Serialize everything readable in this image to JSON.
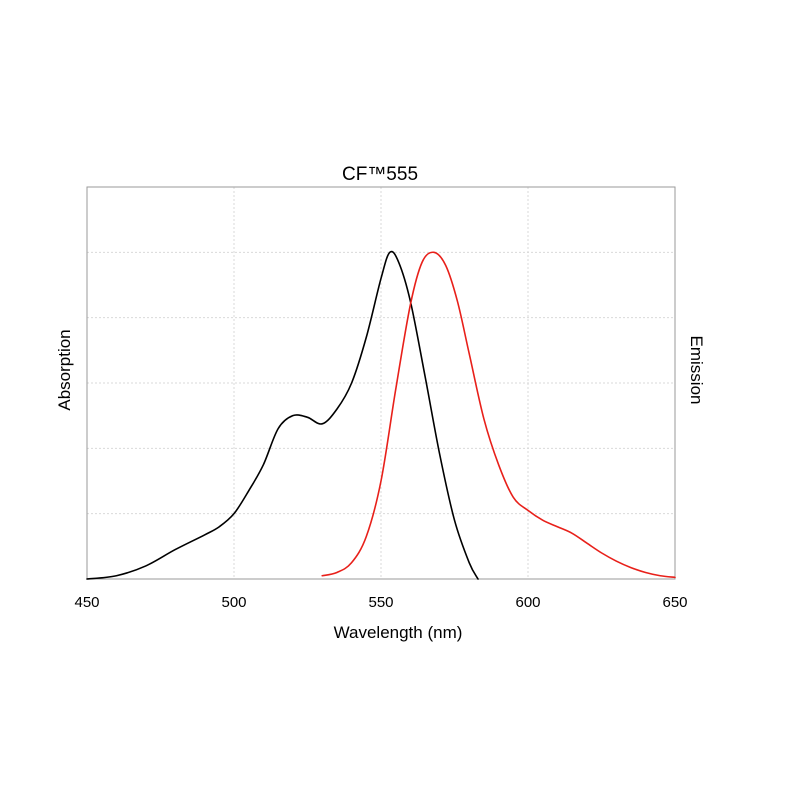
{
  "chart_data": {
    "type": "line",
    "title": "CF™555",
    "xlabel": "Wavelength (nm)",
    "ylabel_left": "Absorption",
    "ylabel_right": "Emission",
    "xlim": [
      450,
      650
    ],
    "ylim": [
      0,
      1.2
    ],
    "x_ticks": [
      450,
      500,
      550,
      600,
      650
    ],
    "y_gridlines": [
      0.2,
      0.4,
      0.6,
      0.8,
      1.0
    ],
    "grid": true,
    "series": [
      {
        "color": "#000000",
        "points": [
          [
            450,
            0.0
          ],
          [
            460,
            0.01
          ],
          [
            470,
            0.04
          ],
          [
            480,
            0.09
          ],
          [
            490,
            0.135
          ],
          [
            495,
            0.16
          ],
          [
            500,
            0.2
          ],
          [
            505,
            0.27
          ],
          [
            510,
            0.35
          ],
          [
            515,
            0.46
          ],
          [
            520,
            0.5
          ],
          [
            525,
            0.495
          ],
          [
            530,
            0.475
          ],
          [
            535,
            0.52
          ],
          [
            540,
            0.6
          ],
          [
            545,
            0.74
          ],
          [
            550,
            0.92
          ],
          [
            553,
            1.0
          ],
          [
            556,
            0.97
          ],
          [
            560,
            0.85
          ],
          [
            565,
            0.62
          ],
          [
            570,
            0.38
          ],
          [
            575,
            0.18
          ],
          [
            580,
            0.05
          ],
          [
            583,
            0.0
          ]
        ]
      },
      {
        "color": "#e8201a",
        "points": [
          [
            530,
            0.01
          ],
          [
            535,
            0.02
          ],
          [
            540,
            0.05
          ],
          [
            545,
            0.13
          ],
          [
            550,
            0.3
          ],
          [
            555,
            0.58
          ],
          [
            560,
            0.84
          ],
          [
            564,
            0.97
          ],
          [
            568,
            1.0
          ],
          [
            572,
            0.96
          ],
          [
            576,
            0.85
          ],
          [
            580,
            0.69
          ],
          [
            585,
            0.49
          ],
          [
            590,
            0.35
          ],
          [
            595,
            0.25
          ],
          [
            600,
            0.21
          ],
          [
            605,
            0.18
          ],
          [
            610,
            0.16
          ],
          [
            615,
            0.14
          ],
          [
            620,
            0.11
          ],
          [
            625,
            0.08
          ],
          [
            630,
            0.055
          ],
          [
            635,
            0.035
          ],
          [
            640,
            0.02
          ],
          [
            645,
            0.01
          ],
          [
            650,
            0.005
          ]
        ]
      }
    ]
  }
}
